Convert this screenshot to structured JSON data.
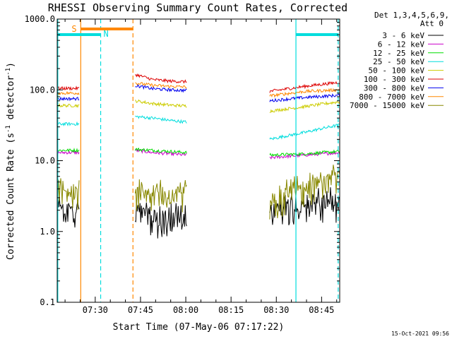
{
  "chart_data": {
    "type": "line",
    "title": "RHESSI Observing Summary Count Rates, Corrected",
    "xlabel": "Start Time (07-May-06 07:17:22)",
    "ylabel": "Corrected Count Rate (s⁻¹ detector⁻¹)",
    "ylabel_parts": [
      "Corrected Count Rate (s",
      "-1",
      " detector",
      "-1",
      ")"
    ],
    "xlim_min": [
      17.4,
      111.0
    ],
    "ylim": [
      0.1,
      1000.0
    ],
    "yscale": "log",
    "xticks": [
      {
        "min": 30,
        "label": "07:30"
      },
      {
        "min": 45,
        "label": "07:45"
      },
      {
        "min": 60,
        "label": "08:00"
      },
      {
        "min": 75,
        "label": "08:15"
      },
      {
        "min": 90,
        "label": "08:30"
      },
      {
        "min": 105,
        "label": "08:45"
      }
    ],
    "yticks": [
      {
        "value": 0.1,
        "label": "0.1"
      },
      {
        "value": 1,
        "label": "1.0"
      },
      {
        "value": 10,
        "label": "10.0"
      },
      {
        "value": 100,
        "label": "100.0"
      },
      {
        "value": 1000,
        "label": "1000.0"
      }
    ],
    "detectors_line1": "Det 1,3,4,5,6,9,",
    "detectors_line2": "Att 0",
    "segments": [
      [
        17.4,
        24.8
      ],
      [
        43.2,
        60.5
      ],
      [
        87.8,
        111.0
      ]
    ],
    "series": [
      {
        "name": "3 - 6 keV",
        "color": "#000000",
        "values": [
          2.0,
          2.0,
          1.5,
          1.5,
          1.5,
          2.0,
          2.5,
          2.5
        ]
      },
      {
        "name": "6 - 12 keV",
        "color": "#cc00cc",
        "values": [
          13.0,
          14.0,
          13.0,
          12.5,
          12.0,
          11.0,
          12.0,
          13.0
        ]
      },
      {
        "name": "12 - 25 keV",
        "color": "#00dd00",
        "values": [
          14.0,
          14.5,
          14.0,
          13.5,
          13.0,
          12.0,
          12.5,
          13.5
        ]
      },
      {
        "name": "25 - 50 keV",
        "color": "#00dddd",
        "values": [
          33.0,
          42.0,
          40.0,
          37.0,
          35.0,
          20.0,
          25.0,
          32.0
        ]
      },
      {
        "name": "50 - 100 keV",
        "color": "#cccc00",
        "values": [
          60.0,
          70.0,
          64.0,
          61.0,
          59.0,
          50.0,
          58.0,
          68.0
        ]
      },
      {
        "name": "100 - 300 keV",
        "color": "#dd0000",
        "values": [
          105.0,
          165.0,
          140.0,
          133.0,
          130.0,
          95.0,
          112.0,
          128.0
        ]
      },
      {
        "name": "300 - 800 keV",
        "color": "#0000ee",
        "values": [
          75.0,
          115.0,
          104.0,
          100.0,
          98.0,
          70.0,
          78.0,
          84.0
        ]
      },
      {
        "name": "800 - 7000 keV",
        "color": "#ff8800",
        "values": [
          90.0,
          125.0,
          116.0,
          112.0,
          110.0,
          82.0,
          95.0,
          100.0
        ]
      },
      {
        "name": "7000 - 15000 keV",
        "color": "#888800",
        "values": [
          3.5,
          3.5,
          3.2,
          3.2,
          3.5,
          2.5,
          4.0,
          5.5
        ]
      }
    ],
    "annotations": {
      "saa_label": "S",
      "night_label": "N",
      "saa_color": "#ff8800",
      "night_color": "#00dddd",
      "saa_bar": [
        25.2,
        42.5
      ],
      "night_bars": [
        [
          17.4,
          31.8
        ],
        [
          96.5,
          110.5
        ]
      ],
      "saa_start_line": 25.2,
      "saa_end_line": 42.5,
      "night_start_lines": [
        17.6,
        96.5
      ],
      "night_end_lines": [
        31.8,
        110.5
      ]
    }
  },
  "footer": {
    "timestamp": "15-Oct-2021 09:56"
  }
}
